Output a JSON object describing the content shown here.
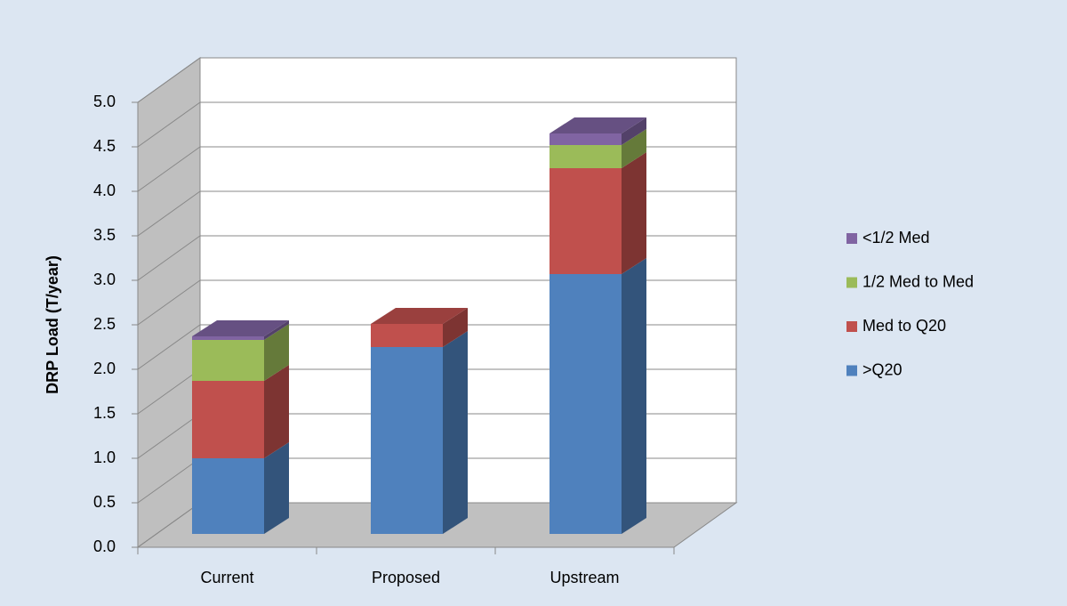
{
  "chart_data": {
    "type": "bar3d_stacked",
    "y_label": "DRP Load (T/year)",
    "categories": [
      "Current",
      "Proposed",
      "Upstream"
    ],
    "series": [
      {
        "name": ">Q20",
        "color": "#4f81bd",
        "values": [
          0.85,
          2.1,
          2.92
        ]
      },
      {
        "name": "Med to Q20",
        "color": "#c0504d",
        "values": [
          0.87,
          0.26,
          1.19
        ]
      },
      {
        "name": "1/2 Med to Med",
        "color": "#9bbb59",
        "values": [
          0.46,
          0,
          0.26
        ]
      },
      {
        "name": "<1/2 Med",
        "color": "#8064a2",
        "values": [
          0.04,
          0,
          0.13
        ]
      }
    ],
    "ylim": [
      0,
      5
    ],
    "yticks": [
      {
        "value": 0,
        "label": "0.0"
      },
      0.5,
      {
        "value": 1,
        "label": "1.0"
      },
      1.5,
      {
        "value": 2,
        "label": "2.0"
      },
      2.5,
      {
        "value": 3,
        "label": "3.0"
      },
      3.5,
      {
        "value": 4,
        "label": "4.0"
      },
      4.5,
      {
        "value": 5,
        "label": "5.0"
      }
    ],
    "grid": true,
    "legend": "right"
  }
}
